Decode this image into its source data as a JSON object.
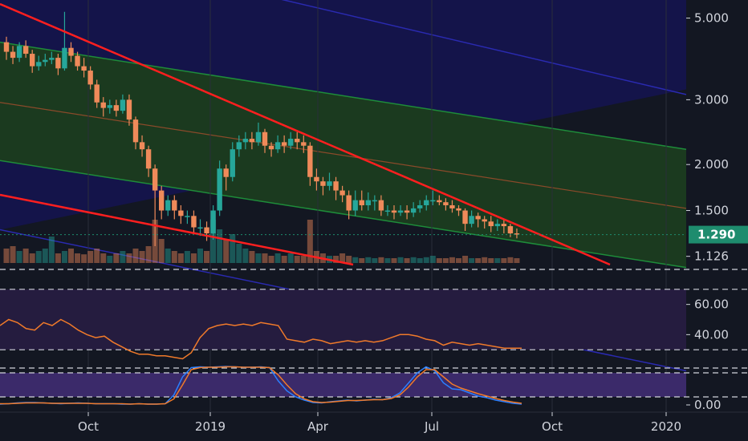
{
  "colors": {
    "background": "#131722",
    "up": "#26a69a",
    "down": "#ef8a5a",
    "trendline": "#ff1f1f",
    "channel_green": "#1e8c3a",
    "channel_fill": "#1b3a1f",
    "blue_band_fill": "#14144a",
    "blue_line": "#2a2ab0",
    "midline": "#8b4a2a",
    "rsi_line": "#f07a2a",
    "stoch_k": "#2b7fff",
    "stoch_d": "#f07a2a",
    "stoch_band": "#3b2a6a",
    "rsi_band": "#251c3f",
    "current_price": "#1e8c6e",
    "grid": "#2a2e39"
  },
  "chart_data": [
    {
      "type": "candlestick",
      "title": "",
      "y_scale": "log",
      "ylim": [
        1.08,
        5.6
      ],
      "y_ticks": [
        "5.000",
        "3.000",
        "2.000",
        "1.500",
        "1.126"
      ],
      "x_ticks": [
        "Oct",
        "2019",
        "Apr",
        "Jul",
        "Oct",
        "2020"
      ],
      "current_price": "1.290",
      "grid": true,
      "candles": [
        [
          4.3,
          4.05,
          4.45,
          3.85
        ],
        [
          4.05,
          3.9,
          4.2,
          3.75
        ],
        [
          3.9,
          4.2,
          4.3,
          3.8
        ],
        [
          4.2,
          4.0,
          4.35,
          3.9
        ],
        [
          4.0,
          3.7,
          4.1,
          3.55
        ],
        [
          3.7,
          3.8,
          3.95,
          3.6
        ],
        [
          3.8,
          3.85,
          4.0,
          3.7
        ],
        [
          3.85,
          3.9,
          4.05,
          3.75
        ],
        [
          3.9,
          3.65,
          4.0,
          3.5
        ],
        [
          3.65,
          4.15,
          5.2,
          3.6
        ],
        [
          4.15,
          3.95,
          4.3,
          3.8
        ],
        [
          3.95,
          3.7,
          4.05,
          3.6
        ],
        [
          3.7,
          3.6,
          3.9,
          3.45
        ],
        [
          3.6,
          3.3,
          3.7,
          3.2
        ],
        [
          3.3,
          2.95,
          3.4,
          2.85
        ],
        [
          2.95,
          2.85,
          3.05,
          2.7
        ],
        [
          2.85,
          2.9,
          3.0,
          2.75
        ],
        [
          2.9,
          2.8,
          3.0,
          2.7
        ],
        [
          2.8,
          3.0,
          3.1,
          2.75
        ],
        [
          3.0,
          2.65,
          3.1,
          2.55
        ],
        [
          2.65,
          2.3,
          2.7,
          2.2
        ],
        [
          2.3,
          2.2,
          2.4,
          2.1
        ],
        [
          2.2,
          1.95,
          2.25,
          1.85
        ],
        [
          1.95,
          1.7,
          2.0,
          1.2
        ],
        [
          1.7,
          1.5,
          1.75,
          1.42
        ],
        [
          1.5,
          1.6,
          1.65,
          1.45
        ],
        [
          1.6,
          1.5,
          1.65,
          1.42
        ],
        [
          1.5,
          1.45,
          1.55,
          1.38
        ],
        [
          1.45,
          1.45,
          1.5,
          1.38
        ],
        [
          1.45,
          1.35,
          1.5,
          1.3
        ],
        [
          1.35,
          1.35,
          1.42,
          1.28
        ],
        [
          1.35,
          1.3,
          1.4,
          1.24
        ],
        [
          1.3,
          1.5,
          1.55,
          1.25
        ],
        [
          1.5,
          1.95,
          2.05,
          1.45
        ],
        [
          1.95,
          1.85,
          2.0,
          1.7
        ],
        [
          1.85,
          2.2,
          2.3,
          1.8
        ],
        [
          2.2,
          2.3,
          2.4,
          2.1
        ],
        [
          2.3,
          2.35,
          2.45,
          2.2
        ],
        [
          2.35,
          2.3,
          2.45,
          2.2
        ],
        [
          2.3,
          2.45,
          2.6,
          2.25
        ],
        [
          2.45,
          2.25,
          2.5,
          2.15
        ],
        [
          2.25,
          2.2,
          2.3,
          2.1
        ],
        [
          2.2,
          2.3,
          2.4,
          2.15
        ],
        [
          2.3,
          2.25,
          2.4,
          2.15
        ],
        [
          2.25,
          2.35,
          2.45,
          2.2
        ],
        [
          2.35,
          2.3,
          2.45,
          2.2
        ],
        [
          2.3,
          2.25,
          2.4,
          2.15
        ],
        [
          2.25,
          1.85,
          2.3,
          1.75
        ],
        [
          1.85,
          1.8,
          1.95,
          1.7
        ],
        [
          1.8,
          1.75,
          1.85,
          1.65
        ],
        [
          1.75,
          1.8,
          1.9,
          1.7
        ],
        [
          1.8,
          1.7,
          1.85,
          1.6
        ],
        [
          1.7,
          1.65,
          1.75,
          1.58
        ],
        [
          1.65,
          1.5,
          1.7,
          1.42
        ],
        [
          1.5,
          1.6,
          1.7,
          1.45
        ],
        [
          1.6,
          1.55,
          1.7,
          1.5
        ],
        [
          1.55,
          1.6,
          1.68,
          1.5
        ],
        [
          1.6,
          1.6,
          1.65,
          1.5
        ],
        [
          1.6,
          1.5,
          1.65,
          1.45
        ],
        [
          1.5,
          1.5,
          1.55,
          1.45
        ],
        [
          1.5,
          1.48,
          1.55,
          1.42
        ],
        [
          1.48,
          1.5,
          1.55,
          1.45
        ],
        [
          1.5,
          1.48,
          1.55,
          1.42
        ],
        [
          1.48,
          1.52,
          1.58,
          1.44
        ],
        [
          1.52,
          1.55,
          1.6,
          1.48
        ],
        [
          1.55,
          1.6,
          1.65,
          1.5
        ],
        [
          1.6,
          1.6,
          1.7,
          1.55
        ],
        [
          1.6,
          1.58,
          1.65,
          1.55
        ],
        [
          1.58,
          1.55,
          1.62,
          1.5
        ],
        [
          1.55,
          1.52,
          1.6,
          1.48
        ],
        [
          1.52,
          1.5,
          1.55,
          1.45
        ],
        [
          1.5,
          1.38,
          1.52,
          1.32
        ],
        [
          1.38,
          1.45,
          1.5,
          1.35
        ],
        [
          1.45,
          1.42,
          1.48,
          1.35
        ],
        [
          1.42,
          1.4,
          1.45,
          1.34
        ],
        [
          1.4,
          1.36,
          1.45,
          1.31
        ],
        [
          1.36,
          1.38,
          1.42,
          1.32
        ],
        [
          1.38,
          1.36,
          1.42,
          1.3
        ],
        [
          1.36,
          1.3,
          1.38,
          1.27
        ],
        [
          1.3,
          1.29,
          1.34,
          1.26
        ]
      ],
      "volume": [
        0.3,
        0.35,
        0.25,
        0.3,
        0.2,
        0.25,
        0.3,
        0.55,
        0.2,
        0.25,
        0.3,
        0.2,
        0.18,
        0.25,
        0.3,
        0.2,
        0.15,
        0.2,
        0.25,
        0.2,
        0.3,
        0.25,
        0.35,
        0.9,
        0.5,
        0.3,
        0.25,
        0.2,
        0.25,
        0.2,
        0.3,
        0.25,
        0.9,
        0.7,
        0.5,
        0.6,
        0.4,
        0.3,
        0.25,
        0.2,
        0.2,
        0.15,
        0.2,
        0.15,
        0.2,
        0.15,
        0.15,
        0.9,
        0.25,
        0.2,
        0.15,
        0.15,
        0.2,
        0.15,
        0.12,
        0.1,
        0.12,
        0.1,
        0.12,
        0.1,
        0.1,
        0.12,
        0.1,
        0.12,
        0.1,
        0.12,
        0.15,
        0.1,
        0.1,
        0.12,
        0.1,
        0.15,
        0.1,
        0.1,
        0.12,
        0.1,
        0.1,
        0.1,
        0.12,
        0.1
      ]
    },
    {
      "type": "line",
      "title": "",
      "ylim": [
        20,
        80
      ],
      "y_ticks": [
        "60.00",
        "40.00"
      ],
      "levels": [
        70,
        30
      ],
      "values": [
        46,
        50,
        48,
        44,
        43,
        48,
        46,
        50,
        47,
        43,
        40,
        38,
        39,
        35,
        32,
        29,
        27,
        27,
        26,
        26,
        25,
        24,
        28,
        38,
        44,
        46,
        47,
        46,
        47,
        46,
        48,
        47,
        46,
        37,
        36,
        35,
        37,
        36,
        34,
        35,
        36,
        35,
        36,
        35,
        36,
        38,
        40,
        40,
        39,
        37,
        36,
        33,
        35,
        34,
        33,
        34,
        33,
        32,
        31,
        31,
        31
      ]
    },
    {
      "type": "line",
      "title": "",
      "ylim": [
        0,
        100
      ],
      "y_ticks": [
        "0.00"
      ],
      "levels": [
        80,
        20
      ],
      "series": [
        {
          "values": [
            2,
            3,
            5,
            6,
            6,
            5,
            4,
            3,
            4,
            5,
            4,
            3,
            3,
            3,
            2,
            2,
            3,
            2,
            2,
            3,
            25,
            70,
            93,
            95,
            94,
            95,
            96,
            95,
            94,
            94,
            95,
            93,
            60,
            35,
            20,
            12,
            6,
            5,
            8,
            10,
            12,
            10,
            12,
            14,
            13,
            18,
            30,
            55,
            80,
            95,
            85,
            55,
            40,
            38,
            30,
            22,
            18,
            12,
            8,
            4,
            2
          ]
        },
        {
          "values": [
            3,
            3,
            4,
            5,
            5,
            5,
            4,
            4,
            4,
            4,
            4,
            3,
            3,
            3,
            3,
            2,
            3,
            2,
            2,
            3,
            15,
            50,
            88,
            93,
            94,
            94,
            95,
            95,
            94,
            94,
            94,
            93,
            75,
            50,
            28,
            15,
            8,
            6,
            7,
            9,
            11,
            11,
            12,
            13,
            13,
            16,
            25,
            45,
            70,
            88,
            88,
            70,
            52,
            42,
            35,
            28,
            22,
            16,
            11,
            7,
            4
          ]
        }
      ]
    }
  ]
}
